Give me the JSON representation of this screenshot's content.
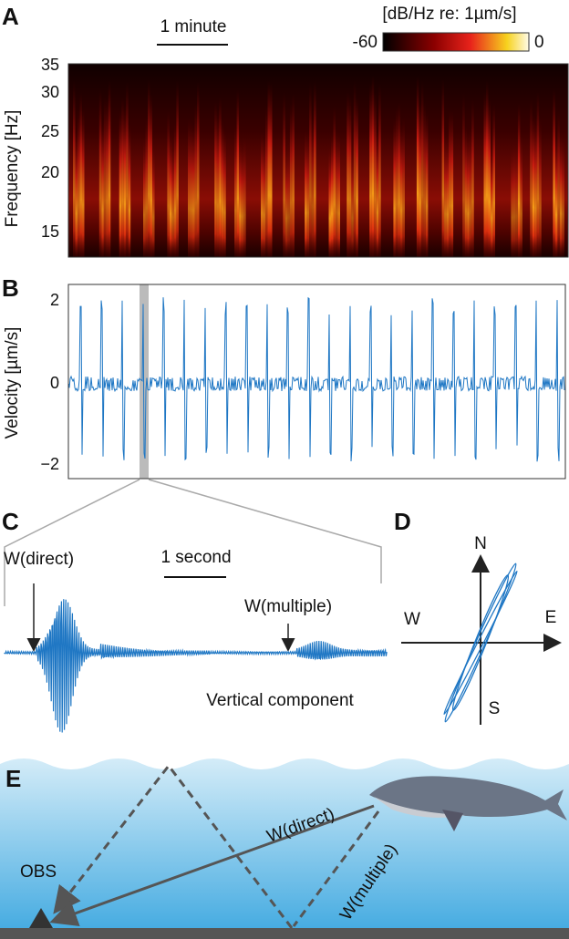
{
  "panels": {
    "A": {
      "label": "A",
      "scale_bar": "1 minute",
      "colorbar_title": "[dB/Hz re: 1µm/s]",
      "colorbar_min": "-60",
      "colorbar_max": "0",
      "y_label": "Frequency [Hz]",
      "y_ticks": [
        "35",
        "30",
        "25",
        "20",
        "15"
      ]
    },
    "B": {
      "label": "B",
      "y_label": "Velocity [µm/s]",
      "y_ticks": [
        "2",
        "0",
        "−2"
      ]
    },
    "C": {
      "label": "C",
      "scale_bar": "1 second",
      "annotations": [
        "W(direct)",
        "W(multiple)"
      ],
      "caption": "Vertical component"
    },
    "D": {
      "label": "D",
      "compass": [
        "N",
        "E",
        "S",
        "W"
      ]
    },
    "E": {
      "label": "E",
      "paths": [
        "W(direct)",
        "W(multiple)"
      ],
      "station": "OBS"
    }
  }
}
